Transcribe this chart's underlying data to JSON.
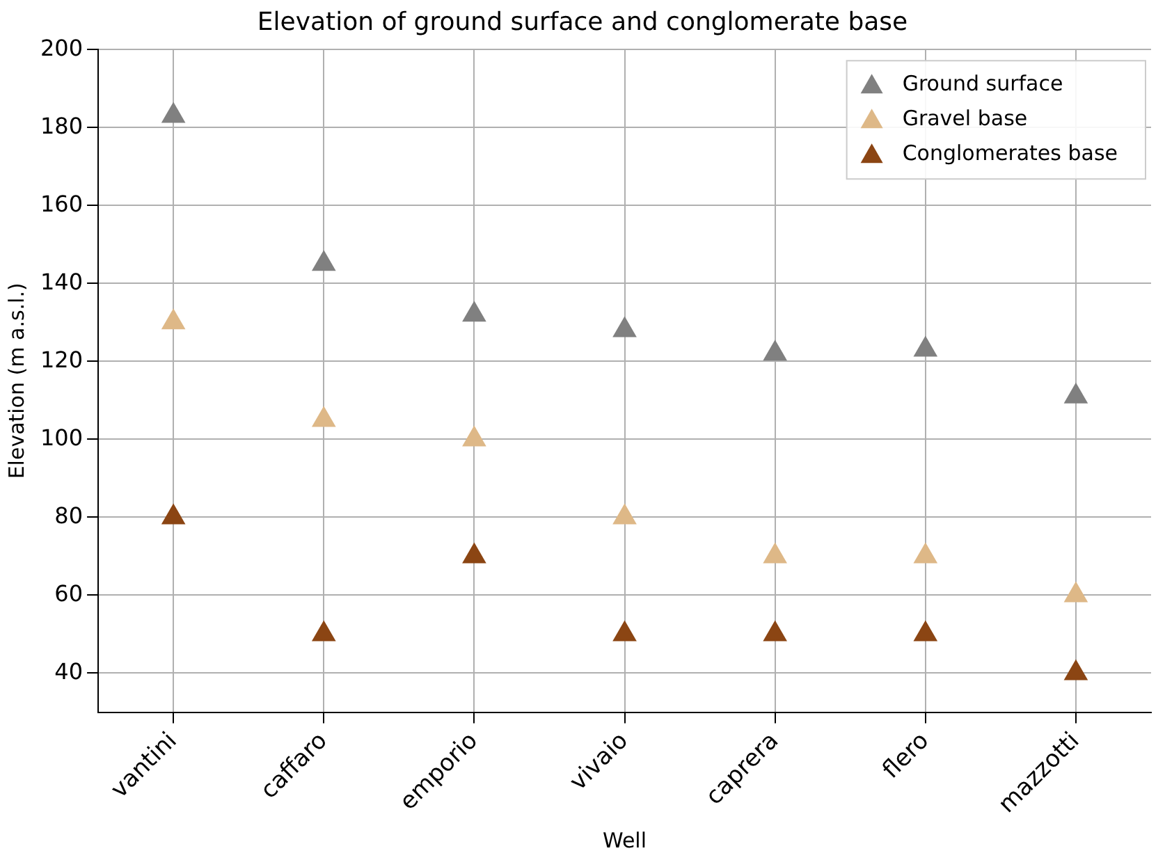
{
  "chart_data": {
    "type": "scatter",
    "title": "Elevation of ground surface and conglomerate base",
    "xlabel": "Well",
    "ylabel": "Elevation (m a.s.l.)",
    "categories": [
      "vantini",
      "caffaro",
      "emporio",
      "vivaio",
      "caprera",
      "flero",
      "mazzotti"
    ],
    "series": [
      {
        "name": "Ground surface",
        "color": "#808080",
        "values": [
          183,
          145,
          132,
          128,
          122,
          123,
          111
        ]
      },
      {
        "name": "Gravel base",
        "color": "#deb887",
        "values": [
          130,
          105,
          100,
          80,
          70,
          70,
          60
        ]
      },
      {
        "name": "Conglomerates base",
        "color": "#8b4513",
        "values": [
          80,
          50,
          70,
          50,
          50,
          50,
          40
        ]
      }
    ],
    "ylim": [
      30,
      200
    ],
    "yticks": [
      40,
      60,
      80,
      100,
      120,
      140,
      160,
      180,
      200
    ],
    "grid": true,
    "legend": "top right",
    "marker": "triangle"
  }
}
